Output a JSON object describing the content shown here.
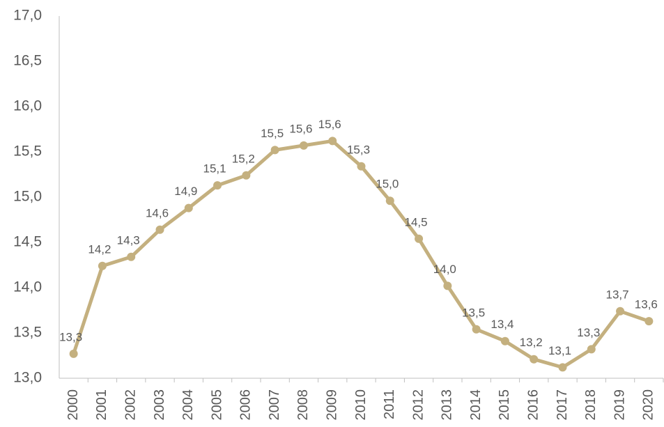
{
  "chart_data": {
    "type": "line",
    "categories": [
      "2000",
      "2001",
      "2002",
      "2003",
      "2004",
      "2005",
      "2006",
      "2007",
      "2008",
      "2009",
      "2010",
      "2011",
      "2012",
      "2013",
      "2014",
      "2015",
      "2016",
      "2017",
      "2018",
      "2019",
      "2020"
    ],
    "series": [
      {
        "color": "#c4b07f",
        "values": [
          13.27,
          14.24,
          14.34,
          14.64,
          14.88,
          15.13,
          15.24,
          15.52,
          15.57,
          15.62,
          15.34,
          14.96,
          14.54,
          14.02,
          13.54,
          13.41,
          13.21,
          13.12,
          13.32,
          13.74,
          13.63
        ],
        "value_labels": [
          "13,3",
          "14,2",
          "14,3",
          "14,6",
          "14,9",
          "15,1",
          "15,2",
          "15,5",
          "15,6",
          "15,6",
          "15,3",
          "15,0",
          "14,5",
          "14,0",
          "13,5",
          "13,4",
          "13,2",
          "13,1",
          "13,3",
          "13,7",
          "13,6"
        ]
      }
    ],
    "ylim": [
      13,
      17
    ],
    "yticks": [
      {
        "value": 13,
        "label": "13,0"
      },
      {
        "value": 13.5,
        "label": "13,5"
      },
      {
        "value": 14,
        "label": "14,0"
      },
      {
        "value": 14.5,
        "label": "14,5"
      },
      {
        "value": 15,
        "label": "15,0"
      },
      {
        "value": 15.5,
        "label": "15,5"
      },
      {
        "value": 16,
        "label": "16,0"
      },
      {
        "value": 16.5,
        "label": "16,5"
      },
      {
        "value": 17,
        "label": "17,0"
      }
    ],
    "grid": false
  }
}
